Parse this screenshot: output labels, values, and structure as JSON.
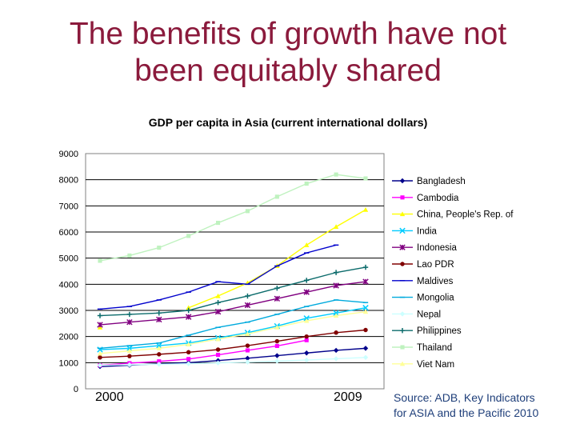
{
  "slide": {
    "title_line1": "The benefits of growth have not",
    "title_line2": "been equitably shared",
    "title_color": "#8b1a3c",
    "year_start": "2000",
    "year_end": "2009",
    "source_line1": "Source: ADB, Key Indicators",
    "source_line2": "for ASIA and the Pacific 2010",
    "source_color": "#1f3f7a"
  },
  "chart_data": {
    "type": "line",
    "title": "GDP per capita in Asia (current international dollars)",
    "xlabel": "",
    "ylabel": "",
    "ylim": [
      0,
      9000
    ],
    "yticks": [
      "0",
      "1000",
      "2000",
      "3000",
      "4000",
      "5000",
      "6000",
      "7000",
      "8000",
      "9000"
    ],
    "grid": "horizontal",
    "legend": "right",
    "x": [
      2000,
      2001,
      2002,
      2003,
      2004,
      2005,
      2006,
      2007,
      2008,
      2009
    ],
    "series": [
      {
        "name": "Bangladesh",
        "color": "#00008b",
        "marker": "diamond",
        "values": [
          850,
          900,
          960,
          1000,
          1080,
          1170,
          1270,
          1370,
          1470,
          1550
        ]
      },
      {
        "name": "Cambodia",
        "color": "#ff00ff",
        "marker": "square",
        "values": [
          900,
          980,
          1050,
          1140,
          1300,
          1470,
          1640,
          1860,
          null,
          null
        ]
      },
      {
        "name": "China, People's Rep. of",
        "color": "#ffff00",
        "marker": "triangle",
        "values": [
          2350,
          null,
          null,
          3100,
          3550,
          4050,
          4700,
          5500,
          6200,
          6850
        ]
      },
      {
        "name": "India",
        "color": "#00ccff",
        "marker": "x",
        "values": [
          1500,
          1550,
          1650,
          1750,
          1950,
          2150,
          2400,
          2700,
          2900,
          3100
        ]
      },
      {
        "name": "Indonesia",
        "color": "#800080",
        "marker": "star",
        "values": [
          2450,
          2550,
          2650,
          2750,
          2950,
          3200,
          3450,
          3700,
          3950,
          4100
        ]
      },
      {
        "name": "Lao PDR",
        "color": "#800000",
        "marker": "circle",
        "values": [
          1200,
          1250,
          1320,
          1400,
          1500,
          1650,
          1820,
          2000,
          2150,
          2250
        ]
      },
      {
        "name": "Maldives",
        "color": "#0000cc",
        "marker": "dash",
        "values": [
          3050,
          3150,
          3400,
          3700,
          4100,
          4000,
          4700,
          5200,
          5500,
          null
        ]
      },
      {
        "name": "Mongolia",
        "color": "#00aadd",
        "marker": "dash",
        "values": [
          1550,
          1650,
          1750,
          2050,
          2350,
          2550,
          2850,
          3150,
          3400,
          3300
        ]
      },
      {
        "name": "Nepal",
        "color": "#ccffff",
        "marker": "diamond",
        "values": [
          900,
          920,
          940,
          960,
          990,
          1020,
          1060,
          1100,
          1150,
          1200
        ]
      },
      {
        "name": "Philippines",
        "color": "#0b6b6b",
        "marker": "plus",
        "values": [
          2800,
          2850,
          2900,
          3000,
          3300,
          3550,
          3850,
          4150,
          4450,
          4650
        ]
      },
      {
        "name": "Thailand",
        "color": "#bff2bf",
        "marker": "square",
        "values": [
          4900,
          5100,
          5400,
          5850,
          6350,
          6800,
          7350,
          7850,
          8200,
          8050
        ]
      },
      {
        "name": "Viet Nam",
        "color": "#ffff99",
        "marker": "triangle",
        "values": [
          1350,
          1450,
          1550,
          1700,
          1900,
          2100,
          2350,
          2600,
          2800,
          2950
        ]
      }
    ]
  }
}
